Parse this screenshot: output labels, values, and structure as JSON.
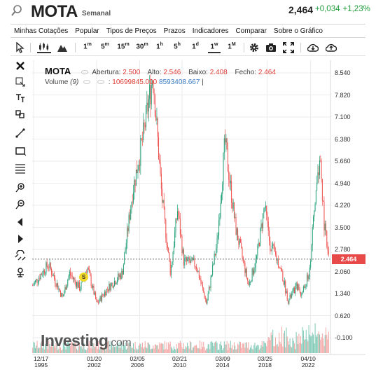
{
  "header": {
    "ticker": "MOTA",
    "period": "Semanal",
    "price": "2,464",
    "change": "+0,034",
    "change_pct": "+1,23%",
    "change_color": "#1e9b3a"
  },
  "menu": [
    "Minhas Cotações",
    "Popular",
    "Tipos de Preços",
    "Prazos",
    "Indicadores",
    "Comparar",
    "Sobre o Gráfico"
  ],
  "toolbar": {
    "pointer_icon": "cursor-icon",
    "candles_icon": "candles-icon",
    "area_icon": "mountain-icon",
    "timeframes": [
      {
        "label": "1",
        "unit": "m"
      },
      {
        "label": "5",
        "unit": "m"
      },
      {
        "label": "15",
        "unit": "m"
      },
      {
        "label": "30",
        "unit": "m"
      },
      {
        "label": "1",
        "unit": "h"
      },
      {
        "label": "5",
        "unit": "h"
      },
      {
        "label": "1",
        "unit": "d"
      },
      {
        "label": "1",
        "unit": "w"
      },
      {
        "label": "1",
        "unit": "M"
      }
    ],
    "active_timeframe": "1w",
    "right_icons": [
      "gear-icon",
      "camera-icon",
      "fullscreen-icon",
      "download-icon",
      "upload-icon"
    ]
  },
  "left_tools": [
    "close-icon",
    "crosshair-icon",
    "text-tool-icon",
    "shapes-icon",
    "trendline-icon",
    "rectangle-icon",
    "fibonacci-icon",
    "zoom-in-icon",
    "zoom-out-icon",
    "arrow-left-icon",
    "arrow-right-icon",
    "magnet-icon",
    "measure-icon"
  ],
  "legend": {
    "symbol": "MOTA",
    "open_label": "Abertura:",
    "open": "2.500",
    "high_label": "Alto:",
    "high": "2.546",
    "low_label": "Baixo:",
    "low": "2.408",
    "close_label": "Fecho:",
    "close": "2.464",
    "volume_label": "Volume",
    "volume_param": "(9)",
    "volume_value": "10699845.000",
    "volume_ma": "8593408.667"
  },
  "watermark": {
    "brand": "Investing",
    "suffix": ".com"
  },
  "split_marker": "S",
  "current_price_tag": "2.464",
  "colors": {
    "up": "#26a17b",
    "down": "#ef5350",
    "price_tag": "#e84a4a",
    "grid": "#ebebeb"
  },
  "chart_data": {
    "type": "candlestick",
    "interval": "weekly",
    "y_ticks": [
      "8.540",
      "7.820",
      "7.100",
      "6.380",
      "5.660",
      "4.940",
      "4.220",
      "3.500",
      "2.780",
      "2.060",
      "1.340",
      "0.620",
      "-0.100"
    ],
    "ylim": [
      -0.1,
      8.54
    ],
    "x_ticks": [
      {
        "line1": "12/17",
        "line2": "1995"
      },
      {
        "line1": "01/20",
        "line2": "2002"
      },
      {
        "line1": "02/05",
        "line2": "2006"
      },
      {
        "line1": "02/21",
        "line2": "2010"
      },
      {
        "line1": "03/09",
        "line2": "2014"
      },
      {
        "line1": "03/25",
        "line2": "2018"
      },
      {
        "line1": "04/10",
        "line2": "2022"
      }
    ],
    "last_close": 2.464,
    "price_path": [
      {
        "date": "1995-12",
        "price": 1.6
      },
      {
        "date": "1997-06",
        "price": 2.3
      },
      {
        "date": "1998-10",
        "price": 1.2
      },
      {
        "date": "1999-06",
        "price": 2.0
      },
      {
        "date": "2000-06",
        "price": 1.5
      },
      {
        "date": "2001-02",
        "price": 2.2
      },
      {
        "date": "2002-01",
        "price": 1.0
      },
      {
        "date": "2003-01",
        "price": 1.5
      },
      {
        "date": "2004-06",
        "price": 2.0
      },
      {
        "date": "2005-06",
        "price": 4.7
      },
      {
        "date": "2006-06",
        "price": 6.5
      },
      {
        "date": "2007-05",
        "price": 8.5
      },
      {
        "date": "2008-03",
        "price": 4.5
      },
      {
        "date": "2009-01",
        "price": 2.0
      },
      {
        "date": "2009-09",
        "price": 4.1
      },
      {
        "date": "2010-04",
        "price": 2.4
      },
      {
        "date": "2011-06",
        "price": 2.3
      },
      {
        "date": "2012-06",
        "price": 1.0
      },
      {
        "date": "2013-06",
        "price": 3.0
      },
      {
        "date": "2014-03",
        "price": 6.3
      },
      {
        "date": "2015-03",
        "price": 3.5
      },
      {
        "date": "2016-06",
        "price": 1.6
      },
      {
        "date": "2017-03",
        "price": 2.5
      },
      {
        "date": "2017-12",
        "price": 4.2
      },
      {
        "date": "2018-06",
        "price": 3.0
      },
      {
        "date": "2019-06",
        "price": 2.2
      },
      {
        "date": "2020-03",
        "price": 1.1
      },
      {
        "date": "2021-01",
        "price": 1.6
      },
      {
        "date": "2021-06",
        "price": 1.3
      },
      {
        "date": "2022-03",
        "price": 2.0
      },
      {
        "date": "2022-10",
        "price": 4.5
      },
      {
        "date": "2023-03",
        "price": 5.8
      },
      {
        "date": "2023-08",
        "price": 3.6
      },
      {
        "date": "2024-01",
        "price": 2.464
      }
    ]
  }
}
